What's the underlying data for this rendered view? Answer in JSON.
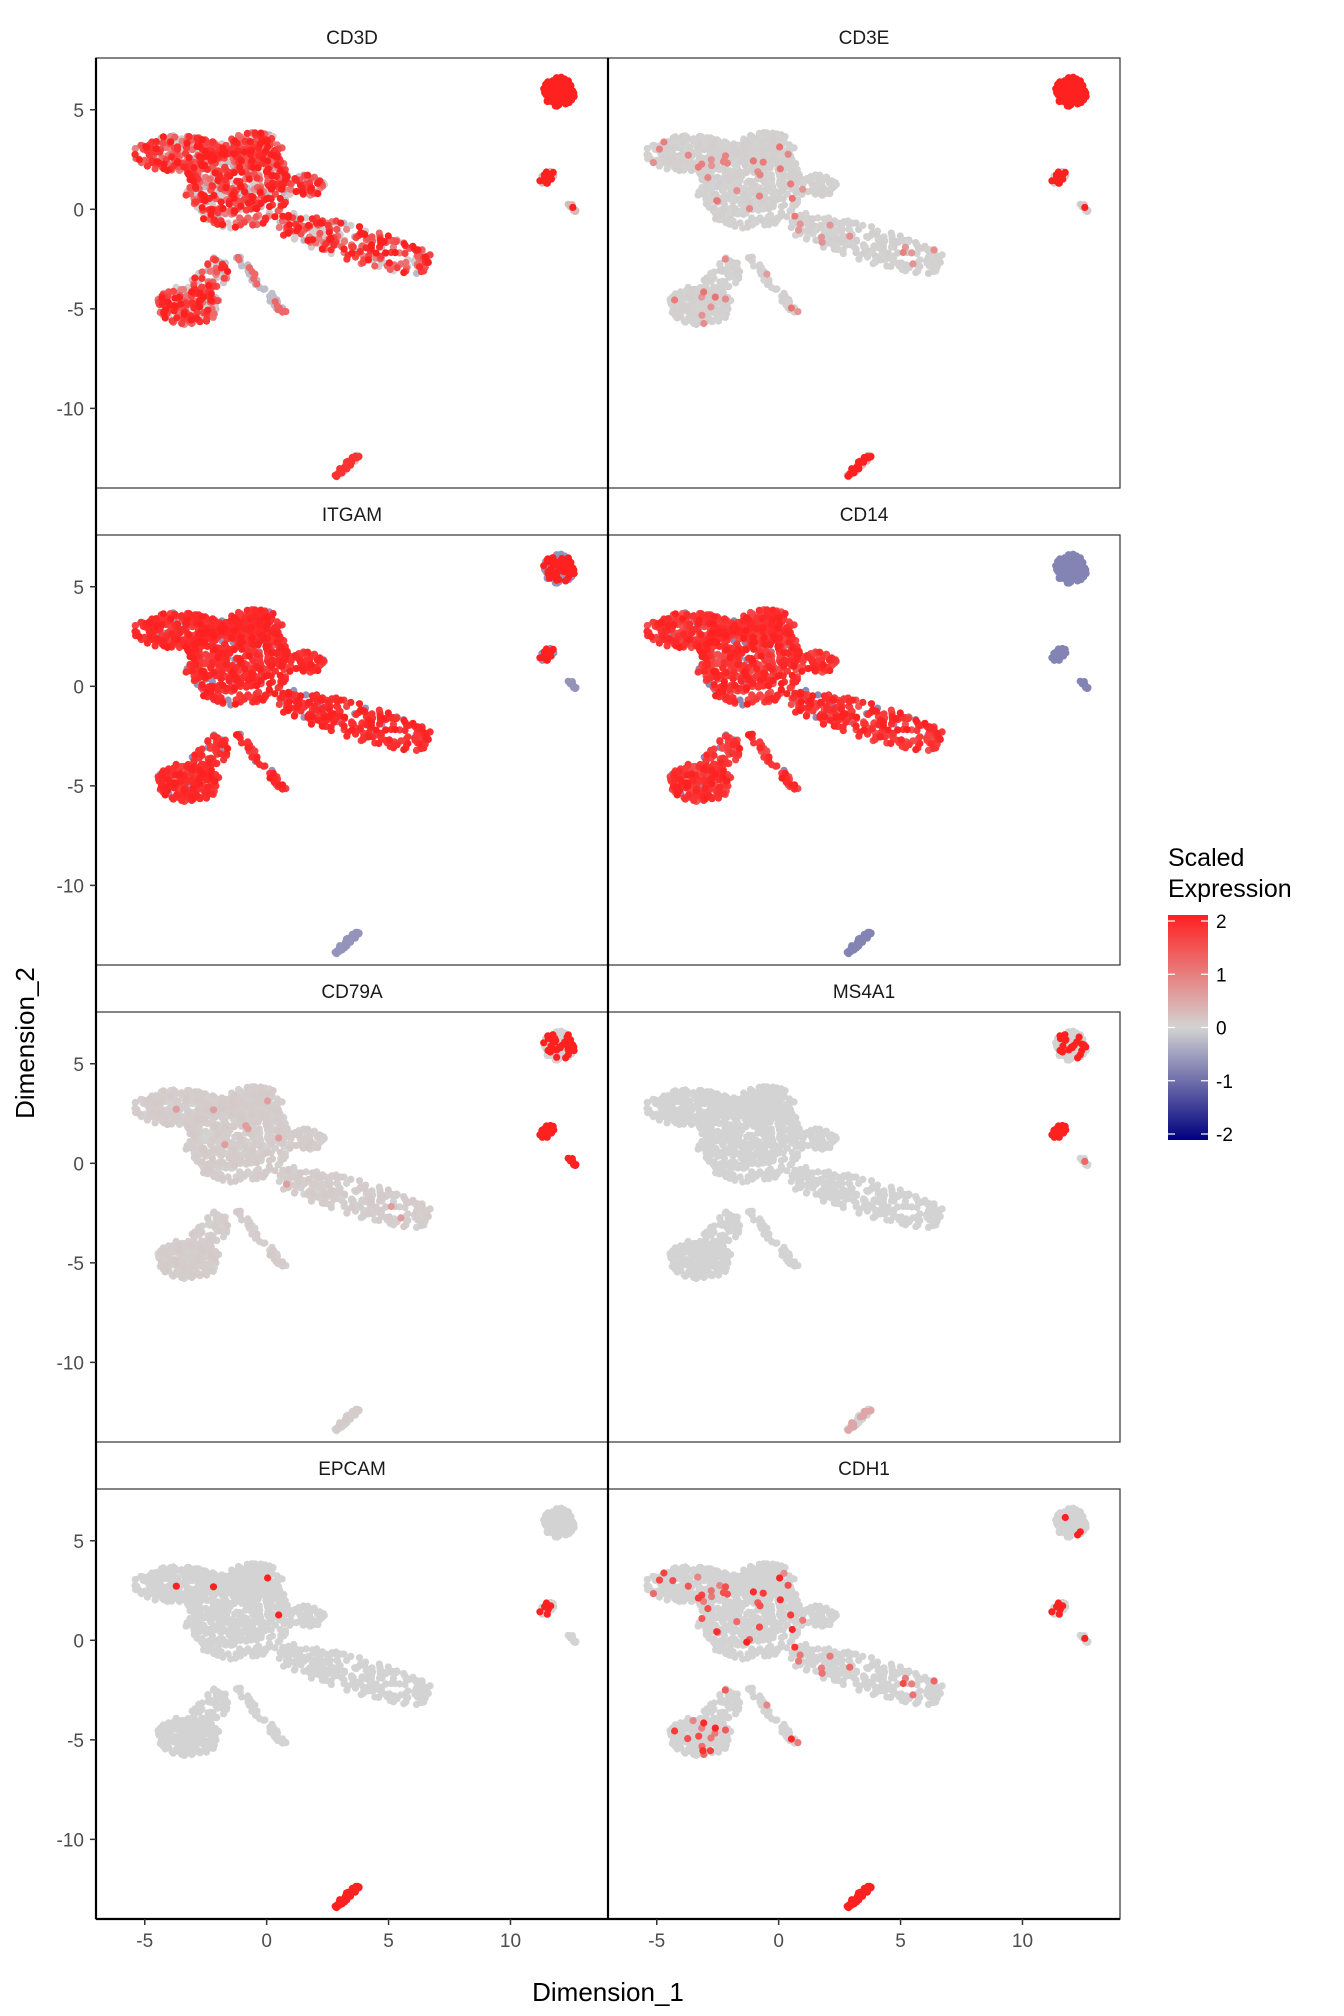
{
  "chart_data": {
    "type": "scatter",
    "description_kind": "faceted UMAP feature plot",
    "xlabel": "Dimension_1",
    "ylabel": "Dimension_2",
    "xlim": [
      -7,
      14
    ],
    "ylim": [
      -14,
      7.6
    ],
    "x_ticks": [
      -5,
      0,
      5,
      10
    ],
    "y_ticks": [
      5,
      0,
      -5,
      -10
    ],
    "x_tick_labels": [
      "-5",
      "0",
      "5",
      "10"
    ],
    "y_tick_labels": [
      "5",
      "0",
      "-5",
      "-10"
    ],
    "legend": {
      "title_line1": "Scaled",
      "title_line2": "Expression",
      "range": [
        -2,
        2
      ],
      "ticks": [
        "2",
        "1",
        "0",
        "-1",
        "-2"
      ],
      "colors": {
        "low": "#00007F",
        "mid": "#D3D3D3",
        "high": "#FF2020"
      },
      "placement": "right"
    },
    "panels": [
      {
        "title": "CD3D",
        "pattern": "cd3d"
      },
      {
        "title": "CD3E",
        "pattern": "cd3e"
      },
      {
        "title": "ITGAM",
        "pattern": "itgam"
      },
      {
        "title": "CD14",
        "pattern": "cd14"
      },
      {
        "title": "CD79A",
        "pattern": "cd79a"
      },
      {
        "title": "MS4A1",
        "pattern": "ms4a1"
      },
      {
        "title": "EPCAM",
        "pattern": "epcam"
      },
      {
        "title": "CDH1",
        "pattern": "cdh1"
      }
    ],
    "clusters": [
      {
        "name": "main-left-arm",
        "shape": "ellipse",
        "center": [
          -3.6,
          2.8
        ],
        "radii": [
          1.9,
          0.9
        ],
        "n": 260
      },
      {
        "name": "main-body",
        "shape": "ellipse",
        "center": [
          -1.2,
          1.2
        ],
        "radii": [
          2.2,
          2.2
        ],
        "n": 520
      },
      {
        "name": "upper-lobe",
        "shape": "ellipse",
        "center": [
          -0.5,
          3.0
        ],
        "radii": [
          1.2,
          0.9
        ],
        "n": 120
      },
      {
        "name": "right-arm",
        "shape": "segment",
        "from": [
          0.5,
          -0.6
        ],
        "to": [
          6.6,
          -2.8
        ],
        "width": 0.7,
        "n": 260
      },
      {
        "name": "right-bump",
        "shape": "ellipse",
        "center": [
          1.7,
          1.2
        ],
        "radii": [
          0.7,
          0.55
        ],
        "n": 60
      },
      {
        "name": "lower-left-lobe",
        "shape": "ellipse",
        "center": [
          -3.2,
          -4.8
        ],
        "radii": [
          1.3,
          1.0
        ],
        "n": 200
      },
      {
        "name": "lower-stem",
        "shape": "segment",
        "from": [
          -1.8,
          -2.6
        ],
        "to": [
          -2.8,
          -4.2
        ],
        "width": 0.5,
        "n": 60
      },
      {
        "name": "diag-spur",
        "shape": "segment",
        "from": [
          -1.2,
          -2.4
        ],
        "to": [
          0.8,
          -5.3
        ],
        "width": 0.14,
        "n": 45
      },
      {
        "name": "t-cell-island",
        "shape": "ellipse",
        "center": [
          12.0,
          5.9
        ],
        "radii": [
          0.65,
          0.75
        ],
        "n": 160
      },
      {
        "name": "b-cell-island",
        "shape": "segment",
        "from": [
          11.3,
          1.3
        ],
        "to": [
          11.7,
          1.9
        ],
        "width": 0.18,
        "n": 30
      },
      {
        "name": "small-island",
        "shape": "segment",
        "from": [
          12.4,
          0.3
        ],
        "to": [
          12.7,
          -0.1
        ],
        "width": 0.08,
        "n": 8
      },
      {
        "name": "bottom-island",
        "shape": "segment",
        "from": [
          2.8,
          -13.4
        ],
        "to": [
          3.8,
          -12.3
        ],
        "width": 0.1,
        "n": 40
      }
    ]
  }
}
